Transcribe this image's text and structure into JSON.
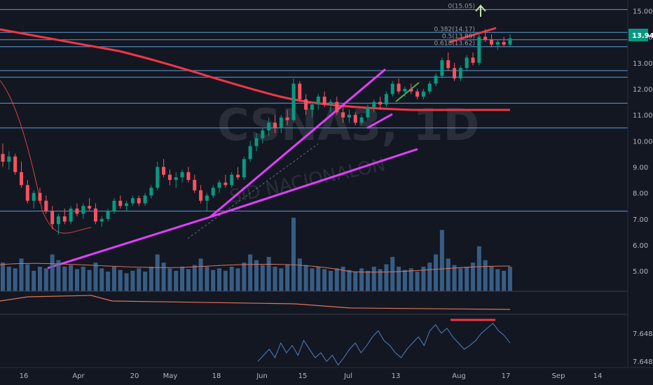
{
  "chart_data": {
    "type": "candlestick",
    "symbol": "CSNA3, 1D",
    "watermark_line2": "SID NACIONALON",
    "x_tick_labels": [
      "16",
      "Apr",
      "20",
      "May",
      "18",
      "Jun",
      "15",
      "Jul",
      "13",
      "Aug",
      "17",
      "Sep",
      "14"
    ],
    "y_ticks": [
      "15.00",
      "14.00",
      "13.00",
      "12.00",
      "11.00",
      "10.00",
      "9.00",
      "8.00",
      "7.00",
      "6.00",
      "5.00"
    ],
    "ylim": [
      4.6,
      15.2
    ],
    "last_price": "13.94",
    "horizontal_levels": [
      15.05,
      14.17,
      13.89,
      13.62,
      12.7,
      12.45,
      11.45,
      10.5,
      7.3
    ],
    "fib_labels": [
      "0(15.05)",
      "0.382(14.17)",
      "0.5(13.89)",
      "0.618(13.62)"
    ],
    "ohlc": [
      [
        9.5,
        9.9,
        9.0,
        9.2
      ],
      [
        9.2,
        9.6,
        8.9,
        9.4
      ],
      [
        9.4,
        9.5,
        8.7,
        8.8
      ],
      [
        8.8,
        9.2,
        8.2,
        8.3
      ],
      [
        8.3,
        8.5,
        7.6,
        7.7
      ],
      [
        7.7,
        8.1,
        7.4,
        8.0
      ],
      [
        8.0,
        8.2,
        7.6,
        7.7
      ],
      [
        7.7,
        7.9,
        7.2,
        7.3
      ],
      [
        7.3,
        7.5,
        6.6,
        6.8
      ],
      [
        6.8,
        7.2,
        6.4,
        7.1
      ],
      [
        7.1,
        7.4,
        6.8,
        6.9
      ],
      [
        6.9,
        7.5,
        6.8,
        7.4
      ],
      [
        7.4,
        7.6,
        7.1,
        7.2
      ],
      [
        7.2,
        7.6,
        7.0,
        7.5
      ],
      [
        7.5,
        7.8,
        7.3,
        7.4
      ],
      [
        7.4,
        7.6,
        6.8,
        6.9
      ],
      [
        6.9,
        7.1,
        6.7,
        7.0
      ],
      [
        7.0,
        7.4,
        6.9,
        7.3
      ],
      [
        7.3,
        7.8,
        7.2,
        7.7
      ],
      [
        7.7,
        7.9,
        7.4,
        7.5
      ],
      [
        7.5,
        7.7,
        7.3,
        7.6
      ],
      [
        7.6,
        7.9,
        7.5,
        7.8
      ],
      [
        7.8,
        7.9,
        7.5,
        7.6
      ],
      [
        7.6,
        8.0,
        7.5,
        7.9
      ],
      [
        7.9,
        8.3,
        7.8,
        8.2
      ],
      [
        8.2,
        9.2,
        8.1,
        9.0
      ],
      [
        9.0,
        9.3,
        8.6,
        8.7
      ],
      [
        8.7,
        8.9,
        8.3,
        8.5
      ],
      [
        8.5,
        8.8,
        8.2,
        8.6
      ],
      [
        8.6,
        8.9,
        8.4,
        8.8
      ],
      [
        8.8,
        9.0,
        8.4,
        8.5
      ],
      [
        8.5,
        8.7,
        8.0,
        8.1
      ],
      [
        8.1,
        8.3,
        7.6,
        7.7
      ],
      [
        7.7,
        8.0,
        7.3,
        7.9
      ],
      [
        7.9,
        8.3,
        7.8,
        8.2
      ],
      [
        8.2,
        8.5,
        8.0,
        8.4
      ],
      [
        8.4,
        8.7,
        8.2,
        8.3
      ],
      [
        8.3,
        8.8,
        8.2,
        8.7
      ],
      [
        8.7,
        9.0,
        8.5,
        8.6
      ],
      [
        8.6,
        9.4,
        8.5,
        9.3
      ],
      [
        9.3,
        10.0,
        9.2,
        9.8
      ],
      [
        9.8,
        10.3,
        9.6,
        10.1
      ],
      [
        10.1,
        10.5,
        9.9,
        10.4
      ],
      [
        10.4,
        10.9,
        10.2,
        10.7
      ],
      [
        10.7,
        11.0,
        10.3,
        10.5
      ],
      [
        10.5,
        11.0,
        10.3,
        10.9
      ],
      [
        10.9,
        11.2,
        10.6,
        10.8
      ],
      [
        10.8,
        12.4,
        10.7,
        12.2
      ],
      [
        12.2,
        12.3,
        11.5,
        11.6
      ],
      [
        11.6,
        11.8,
        11.0,
        11.2
      ],
      [
        11.2,
        11.5,
        10.9,
        11.4
      ],
      [
        11.4,
        11.8,
        11.2,
        11.7
      ],
      [
        11.7,
        11.9,
        11.3,
        11.4
      ],
      [
        11.4,
        11.6,
        11.1,
        11.5
      ],
      [
        11.5,
        11.7,
        11.0,
        11.1
      ],
      [
        11.1,
        11.3,
        10.7,
        10.9
      ],
      [
        10.9,
        11.2,
        10.7,
        11.0
      ],
      [
        11.0,
        11.1,
        10.6,
        10.7
      ],
      [
        10.7,
        11.0,
        10.6,
        10.9
      ],
      [
        10.9,
        11.4,
        10.8,
        11.3
      ],
      [
        11.3,
        11.6,
        11.1,
        11.5
      ],
      [
        11.5,
        11.7,
        11.2,
        11.4
      ],
      [
        11.4,
        11.9,
        11.3,
        11.8
      ],
      [
        11.8,
        12.3,
        11.7,
        12.2
      ],
      [
        12.2,
        12.4,
        11.8,
        11.9
      ],
      [
        11.9,
        12.1,
        11.7,
        12.0
      ],
      [
        12.0,
        12.2,
        11.8,
        11.9
      ],
      [
        11.9,
        12.0,
        11.6,
        11.7
      ],
      [
        11.7,
        12.0,
        11.6,
        11.9
      ],
      [
        11.9,
        12.3,
        11.8,
        12.2
      ],
      [
        12.2,
        12.6,
        12.1,
        12.5
      ],
      [
        12.5,
        13.2,
        12.4,
        13.1
      ],
      [
        13.1,
        13.4,
        12.7,
        12.8
      ],
      [
        12.8,
        13.0,
        12.3,
        12.4
      ],
      [
        12.4,
        12.9,
        12.3,
        12.8
      ],
      [
        12.8,
        13.3,
        12.7,
        13.2
      ],
      [
        13.2,
        13.4,
        12.9,
        13.0
      ],
      [
        13.0,
        14.2,
        12.9,
        14.0
      ],
      [
        14.0,
        14.3,
        13.8,
        13.9
      ],
      [
        13.9,
        14.1,
        13.6,
        13.7
      ],
      [
        13.7,
        13.9,
        13.5,
        13.8
      ],
      [
        13.8,
        14.0,
        13.6,
        13.7
      ],
      [
        13.7,
        14.1,
        13.6,
        13.94
      ]
    ],
    "volume": [
      35,
      30,
      28,
      40,
      33,
      25,
      30,
      28,
      45,
      38,
      30,
      32,
      27,
      30,
      26,
      35,
      28,
      24,
      30,
      26,
      22,
      25,
      28,
      24,
      30,
      45,
      35,
      28,
      25,
      30,
      27,
      32,
      40,
      30,
      26,
      28,
      25,
      30,
      28,
      35,
      45,
      38,
      32,
      42,
      30,
      28,
      33,
      90,
      40,
      32,
      28,
      30,
      27,
      25,
      28,
      30,
      26,
      24,
      28,
      25,
      30,
      27,
      33,
      42,
      30,
      26,
      28,
      24,
      30,
      35,
      45,
      75,
      40,
      32,
      28,
      30,
      35,
      55,
      38,
      30,
      27,
      25,
      30
    ],
    "rsi_series": [
      45,
      50,
      55,
      48,
      60,
      52,
      58,
      50,
      62,
      55,
      48,
      52,
      45,
      50,
      42,
      48,
      55,
      60,
      52,
      58,
      65,
      70,
      62,
      58,
      52,
      48,
      55,
      60,
      65,
      58,
      70,
      75,
      68,
      72,
      65,
      60,
      55,
      58,
      62,
      68,
      72,
      76,
      70,
      66,
      60
    ]
  }
}
